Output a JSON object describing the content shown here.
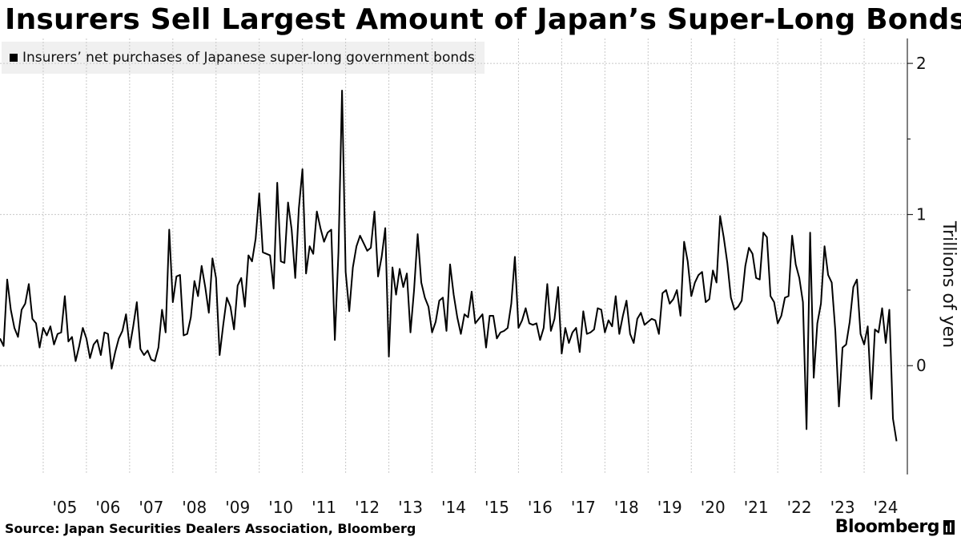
{
  "title": "Insurers Sell Largest Amount of Japan’s Super-Long Bonds",
  "source": "Source: Japan Securities Dealers Association, Bloomberg",
  "brand": "Bloomberg",
  "colors": {
    "line": "#000000",
    "grid": "#c8c8c8",
    "legend_bg": "#f0f0f0",
    "background": "#ffffff"
  },
  "chart_data": {
    "type": "line",
    "title": "Insurers Sell Largest Amount of Japan’s Super-Long Bonds",
    "xlabel": "",
    "ylabel": "Trillions of yen",
    "ylim": [
      -0.72,
      2.08
    ],
    "y_ticks": [
      0,
      1,
      2
    ],
    "y_tick_labels": [
      "0",
      "1",
      "2"
    ],
    "y_axis_position": "right",
    "grid": true,
    "legend_position": "top-left",
    "x_start": "2004-01",
    "x_end": "2024-12",
    "x_tick_years": [
      2005,
      2006,
      2007,
      2008,
      2009,
      2010,
      2011,
      2012,
      2013,
      2014,
      2015,
      2016,
      2017,
      2018,
      2019,
      2020,
      2021,
      2022,
      2023,
      2024
    ],
    "x_tick_labels": [
      "'05",
      "'06",
      "'07",
      "'08",
      "'09",
      "'10",
      "'11",
      "'12",
      "'13",
      "'14",
      "'15",
      "'16",
      "'17",
      "'18",
      "'19",
      "'20",
      "'21",
      "'22",
      "'23",
      "'24"
    ],
    "series": [
      {
        "name": "Insurers’ net purchases of Japanese super-long government bonds",
        "start": "2004-01",
        "frequency": "monthly",
        "values": [
          0.18,
          0.13,
          0.57,
          0.37,
          0.25,
          0.19,
          0.37,
          0.41,
          0.54,
          0.31,
          0.28,
          0.12,
          0.25,
          0.2,
          0.26,
          0.14,
          0.21,
          0.22,
          0.46,
          0.16,
          0.19,
          0.03,
          0.13,
          0.25,
          0.18,
          0.05,
          0.14,
          0.17,
          0.07,
          0.22,
          0.21,
          -0.02,
          0.09,
          0.18,
          0.23,
          0.34,
          0.12,
          0.26,
          0.42,
          0.11,
          0.07,
          0.1,
          0.04,
          0.03,
          0.12,
          0.37,
          0.22,
          0.9,
          0.42,
          0.59,
          0.6,
          0.2,
          0.21,
          0.32,
          0.56,
          0.46,
          0.66,
          0.52,
          0.35,
          0.71,
          0.58,
          0.07,
          0.27,
          0.45,
          0.39,
          0.24,
          0.53,
          0.58,
          0.39,
          0.73,
          0.69,
          0.84,
          1.14,
          0.75,
          0.74,
          0.73,
          0.51,
          1.21,
          0.69,
          0.68,
          1.08,
          0.9,
          0.58,
          1.04,
          1.3,
          0.61,
          0.79,
          0.74,
          1.02,
          0.91,
          0.82,
          0.88,
          0.9,
          0.17,
          0.75,
          1.82,
          0.62,
          0.36,
          0.65,
          0.79,
          0.86,
          0.81,
          0.76,
          0.78,
          1.02,
          0.59,
          0.72,
          0.91,
          0.06,
          0.65,
          0.47,
          0.64,
          0.52,
          0.61,
          0.22,
          0.5,
          0.87,
          0.55,
          0.45,
          0.39,
          0.22,
          0.29,
          0.43,
          0.45,
          0.23,
          0.67,
          0.47,
          0.32,
          0.21,
          0.34,
          0.32,
          0.49,
          0.28,
          0.31,
          0.34,
          0.12,
          0.33,
          0.33,
          0.18,
          0.22,
          0.23,
          0.25,
          0.41,
          0.72,
          0.25,
          0.3,
          0.38,
          0.28,
          0.27,
          0.28,
          0.17,
          0.25,
          0.54,
          0.23,
          0.31,
          0.52,
          0.08,
          0.25,
          0.15,
          0.22,
          0.25,
          0.09,
          0.36,
          0.21,
          0.22,
          0.24,
          0.38,
          0.37,
          0.22,
          0.3,
          0.26,
          0.46,
          0.21,
          0.33,
          0.43,
          0.21,
          0.15,
          0.31,
          0.35,
          0.27,
          0.29,
          0.31,
          0.3,
          0.21,
          0.48,
          0.5,
          0.41,
          0.44,
          0.5,
          0.33,
          0.82,
          0.69,
          0.46,
          0.55,
          0.6,
          0.62,
          0.42,
          0.44,
          0.63,
          0.55,
          0.99,
          0.85,
          0.68,
          0.45,
          0.37,
          0.39,
          0.43,
          0.66,
          0.78,
          0.74,
          0.58,
          0.57,
          0.88,
          0.85,
          0.46,
          0.42,
          0.28,
          0.33,
          0.45,
          0.46,
          0.86,
          0.67,
          0.58,
          0.42,
          -0.42,
          0.88,
          -0.08,
          0.28,
          0.41,
          0.79,
          0.6,
          0.55,
          0.23,
          -0.27,
          0.12,
          0.14,
          0.29,
          0.52,
          0.57,
          0.21,
          0.14,
          0.26,
          -0.22,
          0.24,
          0.22,
          0.38,
          0.15,
          0.37,
          -0.35,
          -0.5
        ]
      }
    ]
  }
}
